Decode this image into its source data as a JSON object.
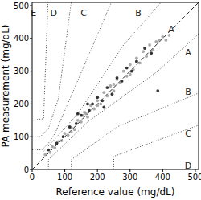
{
  "chart_data": {
    "type": "scatter",
    "x_label": "Reference value (mg/dL)",
    "y_label": "PA measurement (mg/dL)",
    "xlim": [
      0,
      510
    ],
    "ylim": [
      0,
      510
    ],
    "xticks": [
      0,
      100,
      200,
      300,
      400,
      500
    ],
    "yticks": [
      0,
      100,
      200,
      300,
      400,
      500
    ],
    "series": [
      {
        "color": "#8c8c8c",
        "marker": "circle",
        "x": [
          40,
          55,
          62,
          70,
          80,
          90,
          100,
          110,
          120,
          130,
          140,
          150,
          155,
          165,
          170,
          180,
          190,
          200,
          210,
          220,
          230,
          240,
          250,
          260,
          270,
          280,
          290,
          300,
          310,
          320,
          330,
          340,
          350,
          360,
          370,
          380,
          390,
          400,
          410,
          420,
          300,
          250,
          200,
          160,
          120
        ],
        "values": [
          45,
          52,
          70,
          66,
          85,
          88,
          110,
          105,
          128,
          122,
          150,
          145,
          165,
          170,
          160,
          195,
          185,
          210,
          200,
          235,
          225,
          255,
          240,
          275,
          265,
          300,
          285,
          320,
          305,
          340,
          325,
          360,
          345,
          380,
          365,
          390,
          395,
          405,
          395,
          410,
          290,
          260,
          195,
          175,
          115
        ]
      },
      {
        "color": "#111111",
        "marker": "circle",
        "x": [
          50,
          75,
          95,
          115,
          135,
          150,
          175,
          185,
          200,
          215,
          230,
          245,
          260,
          275,
          290,
          305,
          320,
          345,
          365,
          385,
          170,
          220,
          140
        ],
        "values": [
          60,
          80,
          100,
          130,
          140,
          165,
          180,
          200,
          220,
          210,
          250,
          230,
          280,
          270,
          310,
          300,
          330,
          370,
          355,
          240,
          200,
          190,
          170
        ]
      }
    ],
    "reference_lines": [
      {
        "x": [
          0,
          550
        ],
        "y": [
          0,
          550
        ],
        "line_style": "dashed"
      },
      {
        "x": [
          0,
          30,
          140,
          280,
          430
        ],
        "y": [
          50,
          50,
          170,
          380,
          550
        ],
        "line_style": "dotted"
      },
      {
        "x": [
          50,
          50,
          170,
          385,
          550
        ],
        "y": [
          0,
          30,
          145,
          300,
          450
        ],
        "line_style": "dotted"
      },
      {
        "x": [
          0,
          30,
          50,
          70,
          260
        ],
        "y": [
          60,
          60,
          80,
          110,
          550
        ],
        "line_style": "dotted"
      },
      {
        "x": [
          120,
          120,
          260,
          550
        ],
        "y": [
          0,
          30,
          130,
          250
        ],
        "line_style": "dotted"
      },
      {
        "x": [
          0,
          25,
          50,
          80,
          125
        ],
        "y": [
          100,
          100,
          125,
          215,
          550
        ],
        "line_style": "dotted"
      },
      {
        "x": [
          250,
          250,
          550
        ],
        "y": [
          0,
          40,
          150
        ],
        "line_style": "dotted"
      },
      {
        "x": [
          0,
          35,
          50
        ],
        "y": [
          150,
          155,
          550
        ],
        "line_style": "dotted"
      }
    ],
    "annotations": [
      {
        "text": "E",
        "x": 4,
        "y": 478
      },
      {
        "text": "D",
        "x": 66,
        "y": 478
      },
      {
        "text": "C",
        "x": 158,
        "y": 478
      },
      {
        "text": "B",
        "x": 325,
        "y": 478
      },
      {
        "text": "A",
        "x": 426,
        "y": 428
      },
      {
        "text": "A",
        "x": 478,
        "y": 357
      },
      {
        "text": "B",
        "x": 478,
        "y": 239
      },
      {
        "text": "C",
        "x": 478,
        "y": 111
      },
      {
        "text": "D",
        "x": 478,
        "y": 12
      }
    ]
  }
}
